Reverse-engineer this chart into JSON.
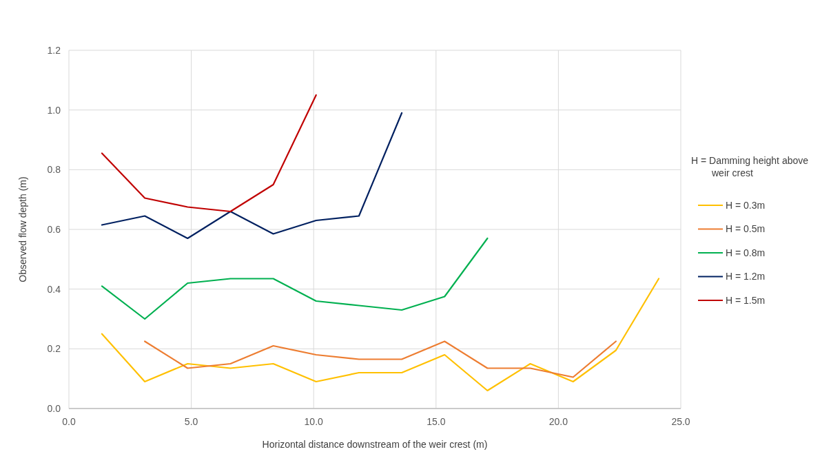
{
  "chart_data": {
    "type": "line",
    "xlabel": "Horizontal distance downstream of the weir crest (m)",
    "ylabel": "Observed flow depth (m)",
    "legend_title": "H = Damming height above weir crest",
    "x": [
      1.35,
      3.1,
      4.85,
      6.6,
      8.35,
      10.1,
      11.85,
      13.6,
      15.35,
      17.1,
      18.85,
      20.6,
      22.35,
      24.1
    ],
    "series": [
      {
        "name": "H = 0.3m",
        "color": "#ffc000",
        "values": [
          0.25,
          0.09,
          0.15,
          0.135,
          0.15,
          0.09,
          0.12,
          0.12,
          0.18,
          0.06,
          0.15,
          0.09,
          0.195,
          0.435
        ]
      },
      {
        "name": "H = 0.5m",
        "color": "#ed7d31",
        "values": [
          null,
          0.225,
          0.135,
          0.15,
          0.21,
          0.18,
          0.165,
          0.165,
          0.225,
          0.135,
          0.135,
          0.105,
          0.225,
          null
        ]
      },
      {
        "name": "H = 0.8m",
        "color": "#00b050",
        "values": [
          0.41,
          0.3,
          0.42,
          0.435,
          0.435,
          0.36,
          0.345,
          0.33,
          0.375,
          0.57,
          null,
          null,
          null,
          null
        ]
      },
      {
        "name": "H = 1.2m",
        "color": "#002060",
        "values": [
          0.615,
          0.645,
          0.57,
          0.66,
          0.585,
          0.63,
          0.645,
          0.99,
          null,
          null,
          null,
          null,
          null,
          null
        ]
      },
      {
        "name": "H = 1.5m",
        "color": "#c00000",
        "values": [
          0.855,
          0.705,
          0.675,
          0.66,
          0.75,
          1.05,
          null,
          null,
          null,
          null,
          null,
          null,
          null,
          null
        ]
      }
    ],
    "xlim": [
      0,
      25
    ],
    "xticks": [
      {
        "value": 0,
        "label": "0.0"
      },
      {
        "value": 5,
        "label": "5.0"
      },
      {
        "value": 10,
        "label": "10.0"
      },
      {
        "value": 15,
        "label": "15.0"
      },
      {
        "value": 20,
        "label": "20.0"
      },
      {
        "value": 25,
        "label": "25.0"
      }
    ],
    "ylim": [
      0,
      1.2
    ],
    "yticks": [
      {
        "value": 0,
        "label": "0.0"
      },
      {
        "value": 0.2,
        "label": "0.2"
      },
      {
        "value": 0.4,
        "label": "0.4"
      },
      {
        "value": 0.6,
        "label": "0.6"
      },
      {
        "value": 0.8,
        "label": "0.8"
      },
      {
        "value": 1.0,
        "label": "1.0"
      },
      {
        "value": 1.2,
        "label": "1.2"
      }
    ],
    "grid": true,
    "legend": "right",
    "marker": "none",
    "line_style": "solid"
  }
}
